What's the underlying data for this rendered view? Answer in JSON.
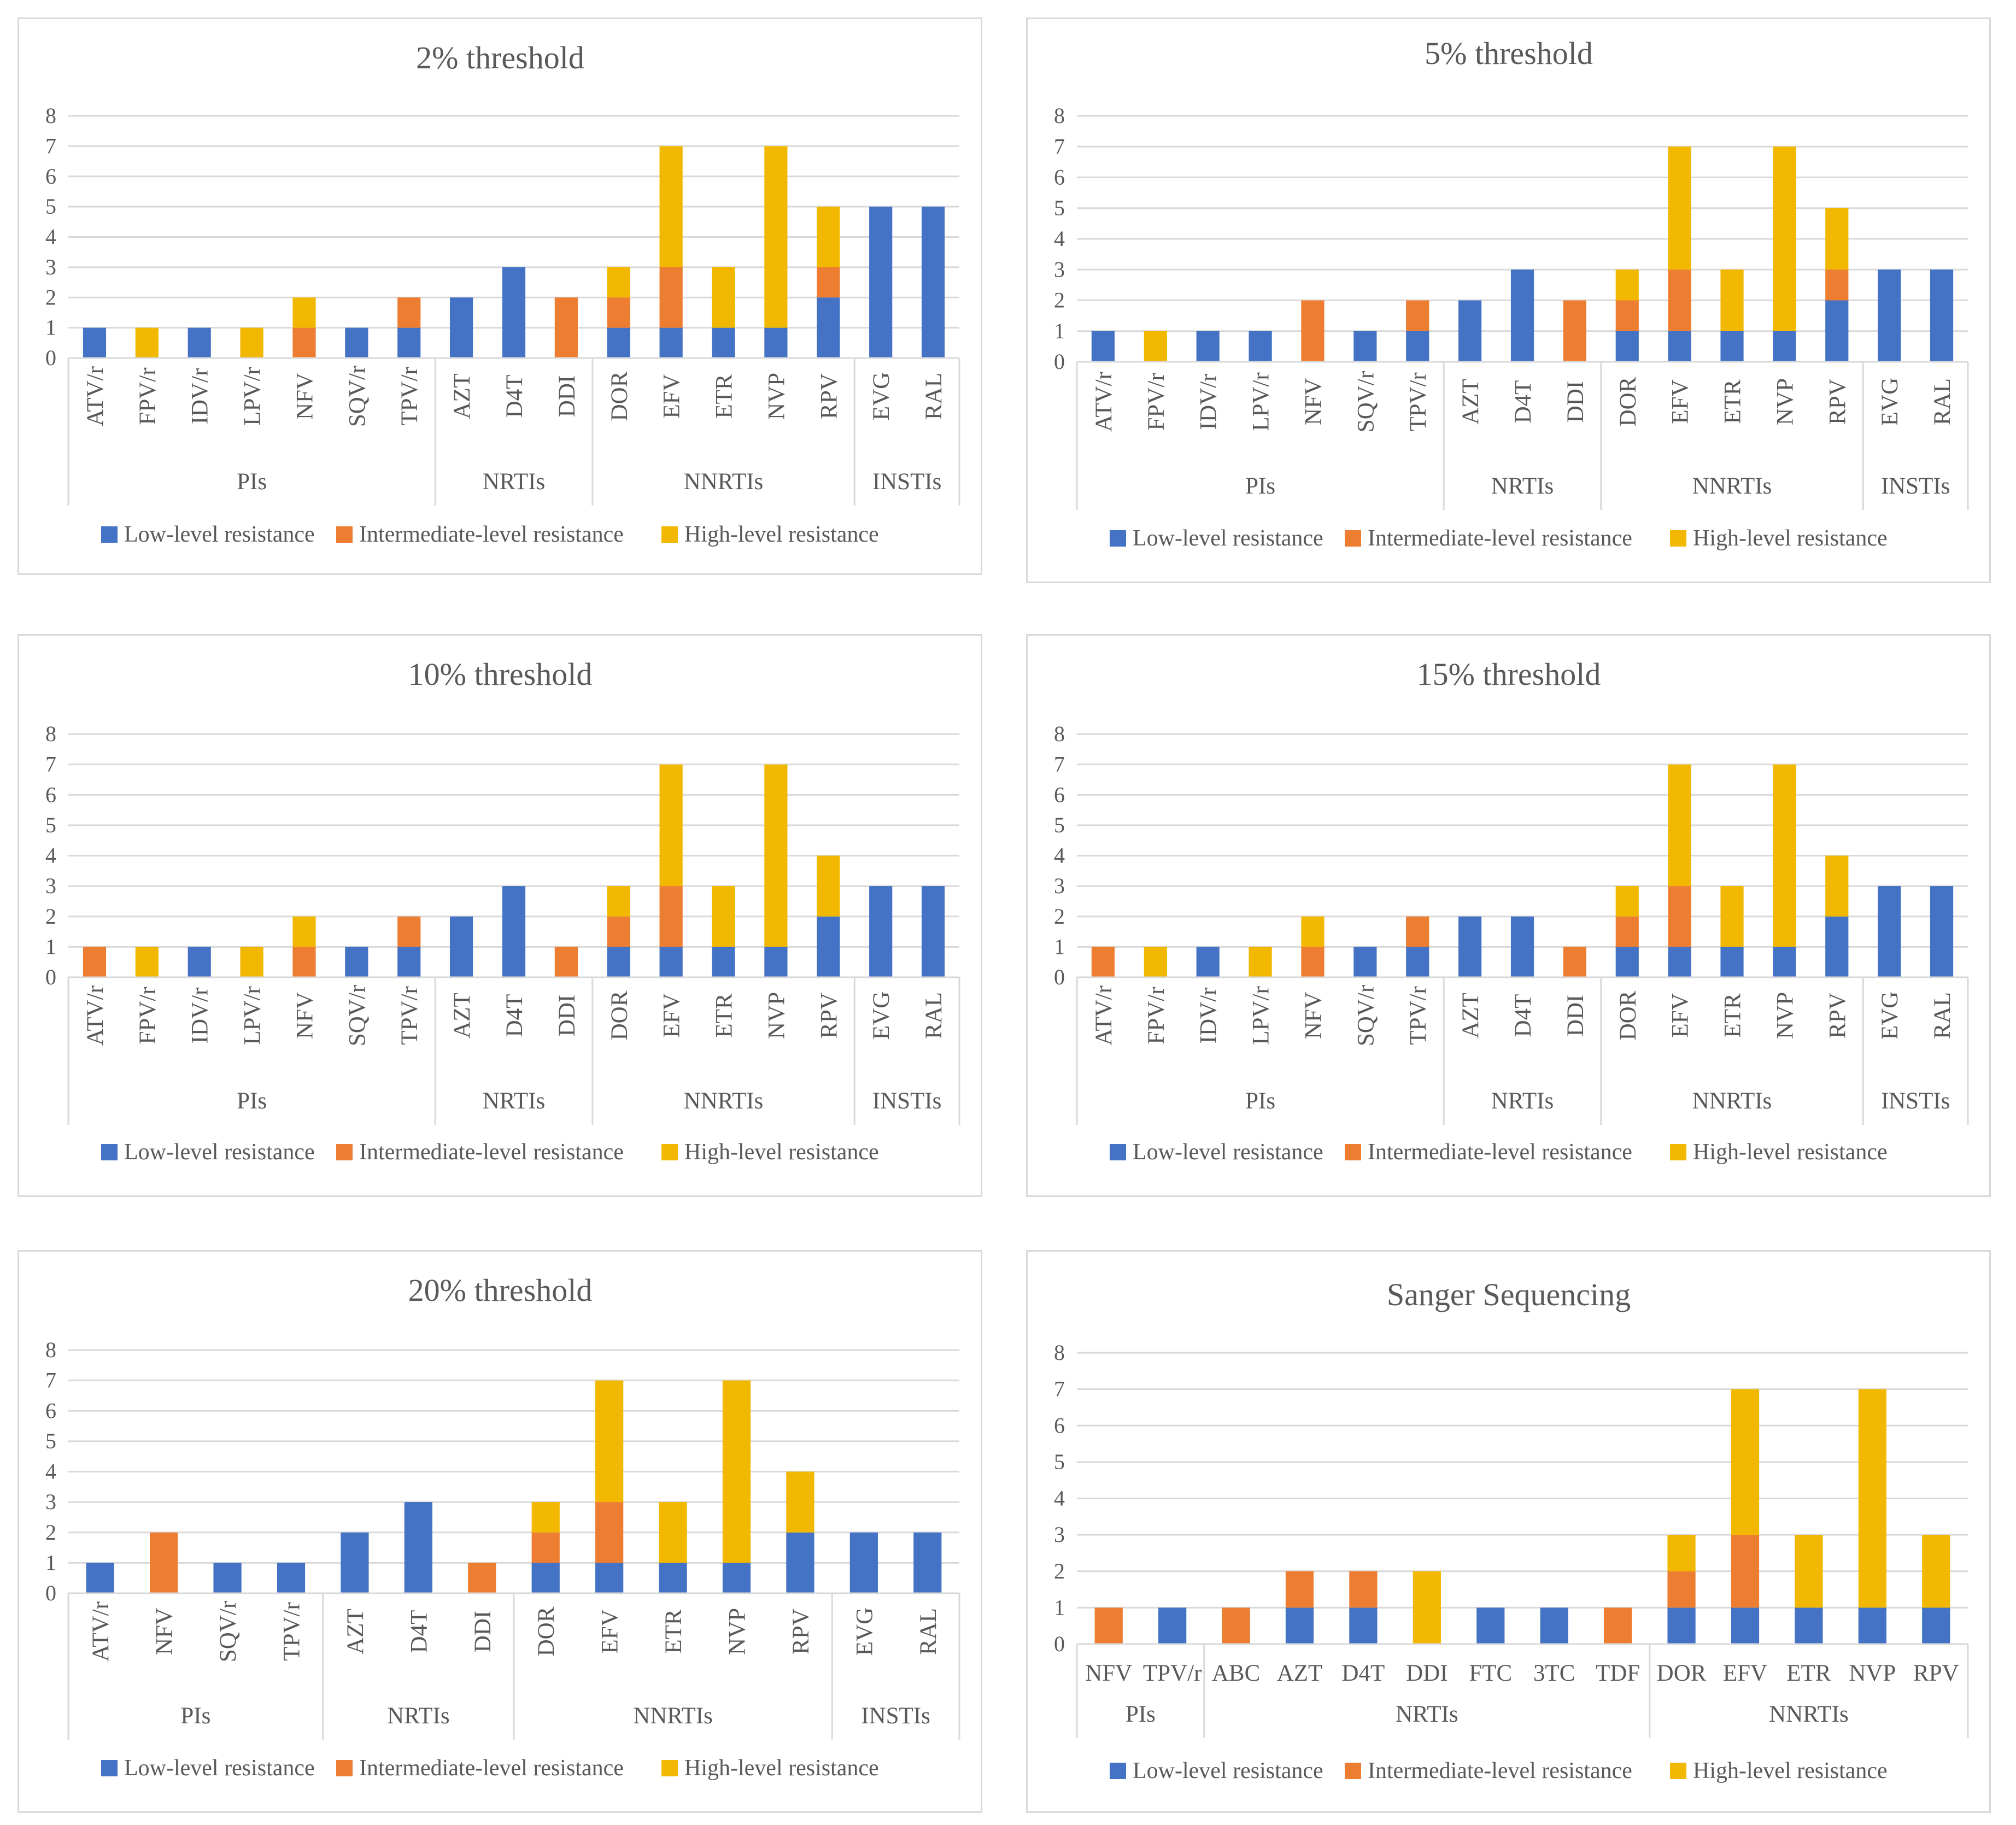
{
  "series": [
    {
      "name": "Low-level resistance",
      "color": "#4472c4"
    },
    {
      "name": "Intermediate-level resistance",
      "color": "#ed7d31"
    },
    {
      "name": "High-level resistance",
      "color": "#f2b800"
    }
  ],
  "chart_data": [
    {
      "type": "bar",
      "stacked": true,
      "title": "2% threshold",
      "ylim": [
        0,
        8
      ],
      "yticks": [
        "0",
        "1",
        "2",
        "3",
        "4",
        "5",
        "6",
        "7",
        "8"
      ],
      "categories": [
        "ATV/r",
        "FPV/r",
        "IDV/r",
        "LPV/r",
        "NFV",
        "SQV/r",
        "TPV/r",
        "AZT",
        "D4T",
        "DDI",
        "DOR",
        "EFV",
        "ETR",
        "NVP",
        "RPV",
        "EVG",
        "RAL"
      ],
      "groups": [
        {
          "label": "PIs",
          "count": 7
        },
        {
          "label": "NRTIs",
          "count": 3
        },
        {
          "label": "NNRTIs",
          "count": 5
        },
        {
          "label": "INSTIs",
          "count": 2
        }
      ],
      "series": [
        {
          "name": "Low-level resistance",
          "values": [
            1,
            0,
            1,
            0,
            0,
            1,
            1,
            2,
            3,
            0,
            1,
            1,
            1,
            1,
            2,
            5,
            5
          ]
        },
        {
          "name": "Intermediate-level resistance",
          "values": [
            0,
            0,
            0,
            0,
            1,
            0,
            1,
            0,
            0,
            2,
            1,
            2,
            0,
            0,
            1,
            0,
            0
          ]
        },
        {
          "name": "High-level resistance",
          "values": [
            0,
            1,
            0,
            1,
            1,
            0,
            0,
            0,
            0,
            0,
            1,
            4,
            2,
            6,
            2,
            0,
            0
          ]
        }
      ]
    },
    {
      "type": "bar",
      "stacked": true,
      "title": "5% threshold",
      "ylim": [
        0,
        8
      ],
      "yticks": [
        "0",
        "1",
        "2",
        "3",
        "4",
        "5",
        "6",
        "7",
        "8"
      ],
      "categories": [
        "ATV/r",
        "FPV/r",
        "IDV/r",
        "LPV/r",
        "NFV",
        "SQV/r",
        "TPV/r",
        "AZT",
        "D4T",
        "DDI",
        "DOR",
        "EFV",
        "ETR",
        "NVP",
        "RPV",
        "EVG",
        "RAL"
      ],
      "groups": [
        {
          "label": "PIs",
          "count": 7
        },
        {
          "label": "NRTIs",
          "count": 3
        },
        {
          "label": "NNRTIs",
          "count": 5
        },
        {
          "label": "INSTIs",
          "count": 2
        }
      ],
      "series": [
        {
          "name": "Low-level resistance",
          "values": [
            1,
            0,
            1,
            1,
            0,
            1,
            1,
            2,
            3,
            0,
            1,
            1,
            1,
            1,
            2,
            3,
            3
          ]
        },
        {
          "name": "Intermediate-level resistance",
          "values": [
            0,
            0,
            0,
            0,
            2,
            0,
            1,
            0,
            0,
            2,
            1,
            2,
            0,
            0,
            1,
            0,
            0
          ]
        },
        {
          "name": "High-level resistance",
          "values": [
            0,
            1,
            0,
            0,
            0,
            0,
            0,
            0,
            0,
            0,
            1,
            4,
            2,
            6,
            2,
            0,
            0
          ]
        }
      ]
    },
    {
      "type": "bar",
      "stacked": true,
      "title": "10% threshold",
      "ylim": [
        0,
        8
      ],
      "yticks": [
        "0",
        "1",
        "2",
        "3",
        "4",
        "5",
        "6",
        "7",
        "8"
      ],
      "categories": [
        "ATV/r",
        "FPV/r",
        "IDV/r",
        "LPV/r",
        "NFV",
        "SQV/r",
        "TPV/r",
        "AZT",
        "D4T",
        "DDI",
        "DOR",
        "EFV",
        "ETR",
        "NVP",
        "RPV",
        "EVG",
        "RAL"
      ],
      "groups": [
        {
          "label": "PIs",
          "count": 7
        },
        {
          "label": "NRTIs",
          "count": 3
        },
        {
          "label": "NNRTIs",
          "count": 5
        },
        {
          "label": "INSTIs",
          "count": 2
        }
      ],
      "series": [
        {
          "name": "Low-level resistance",
          "values": [
            0,
            0,
            1,
            0,
            0,
            1,
            1,
            2,
            3,
            0,
            1,
            1,
            1,
            1,
            2,
            3,
            3
          ]
        },
        {
          "name": "Intermediate-level resistance",
          "values": [
            1,
            0,
            0,
            0,
            1,
            0,
            1,
            0,
            0,
            1,
            1,
            2,
            0,
            0,
            0,
            0,
            0
          ]
        },
        {
          "name": "High-level resistance",
          "values": [
            0,
            1,
            0,
            1,
            1,
            0,
            0,
            0,
            0,
            0,
            1,
            4,
            2,
            6,
            2,
            0,
            0
          ]
        }
      ]
    },
    {
      "type": "bar",
      "stacked": true,
      "title": "15% threshold",
      "ylim": [
        0,
        8
      ],
      "yticks": [
        "0",
        "1",
        "2",
        "3",
        "4",
        "5",
        "6",
        "7",
        "8"
      ],
      "categories": [
        "ATV/r",
        "FPV/r",
        "IDV/r",
        "LPV/r",
        "NFV",
        "SQV/r",
        "TPV/r",
        "AZT",
        "D4T",
        "DDI",
        "DOR",
        "EFV",
        "ETR",
        "NVP",
        "RPV",
        "EVG",
        "RAL"
      ],
      "groups": [
        {
          "label": "PIs",
          "count": 7
        },
        {
          "label": "NRTIs",
          "count": 3
        },
        {
          "label": "NNRTIs",
          "count": 5
        },
        {
          "label": "INSTIs",
          "count": 2
        }
      ],
      "series": [
        {
          "name": "Low-level resistance",
          "values": [
            0,
            0,
            1,
            0,
            0,
            1,
            1,
            2,
            2,
            0,
            1,
            1,
            1,
            1,
            2,
            3,
            3
          ]
        },
        {
          "name": "Intermediate-level resistance",
          "values": [
            1,
            0,
            0,
            0,
            1,
            0,
            1,
            0,
            0,
            1,
            1,
            2,
            0,
            0,
            0,
            0,
            0
          ]
        },
        {
          "name": "High-level resistance",
          "values": [
            0,
            1,
            0,
            1,
            1,
            0,
            0,
            0,
            0,
            0,
            1,
            4,
            2,
            6,
            2,
            0,
            0
          ]
        }
      ]
    },
    {
      "type": "bar",
      "stacked": true,
      "title": "20% threshold",
      "ylim": [
        0,
        8
      ],
      "yticks": [
        "0",
        "1",
        "2",
        "3",
        "4",
        "5",
        "6",
        "7",
        "8"
      ],
      "categories": [
        "ATV/r",
        "NFV",
        "SQV/r",
        "TPV/r",
        "AZT",
        "D4T",
        "DDI",
        "DOR",
        "EFV",
        "ETR",
        "NVP",
        "RPV",
        "EVG",
        "RAL"
      ],
      "groups": [
        {
          "label": "PIs",
          "count": 4
        },
        {
          "label": "NRTIs",
          "count": 3
        },
        {
          "label": "NNRTIs",
          "count": 5
        },
        {
          "label": "INSTIs",
          "count": 2
        }
      ],
      "series": [
        {
          "name": "Low-level resistance",
          "values": [
            1,
            0,
            1,
            1,
            2,
            3,
            0,
            1,
            1,
            1,
            1,
            2,
            2,
            2
          ]
        },
        {
          "name": "Intermediate-level resistance",
          "values": [
            0,
            2,
            0,
            0,
            0,
            0,
            1,
            1,
            2,
            0,
            0,
            0,
            0,
            0
          ]
        },
        {
          "name": "High-level resistance",
          "values": [
            0,
            0,
            0,
            0,
            0,
            0,
            0,
            1,
            4,
            2,
            6,
            2,
            0,
            0
          ]
        }
      ]
    },
    {
      "type": "bar",
      "stacked": true,
      "horizontalLabels": true,
      "title": "Sanger Sequencing",
      "ylim": [
        0,
        8
      ],
      "yticks": [
        "0",
        "1",
        "2",
        "3",
        "4",
        "5",
        "6",
        "7",
        "8"
      ],
      "categories": [
        "NFV",
        "TPV/r",
        "ABC",
        "AZT",
        "D4T",
        "DDI",
        "FTC",
        "3TC",
        "TDF",
        "DOR",
        "EFV",
        "ETR",
        "NVP",
        "RPV"
      ],
      "groups": [
        {
          "label": "PIs",
          "count": 2
        },
        {
          "label": "NRTIs",
          "count": 7
        },
        {
          "label": "NNRTIs",
          "count": 5
        }
      ],
      "series": [
        {
          "name": "Low-level resistance",
          "values": [
            0,
            1,
            0,
            1,
            1,
            0,
            1,
            1,
            0,
            1,
            1,
            1,
            1,
            1
          ]
        },
        {
          "name": "Intermediate-level resistance",
          "values": [
            1,
            0,
            1,
            1,
            1,
            0,
            0,
            0,
            1,
            1,
            2,
            0,
            0,
            0
          ]
        },
        {
          "name": "High-level resistance",
          "values": [
            0,
            0,
            0,
            0,
            0,
            2,
            0,
            0,
            0,
            1,
            4,
            2,
            6,
            2
          ]
        }
      ]
    }
  ]
}
